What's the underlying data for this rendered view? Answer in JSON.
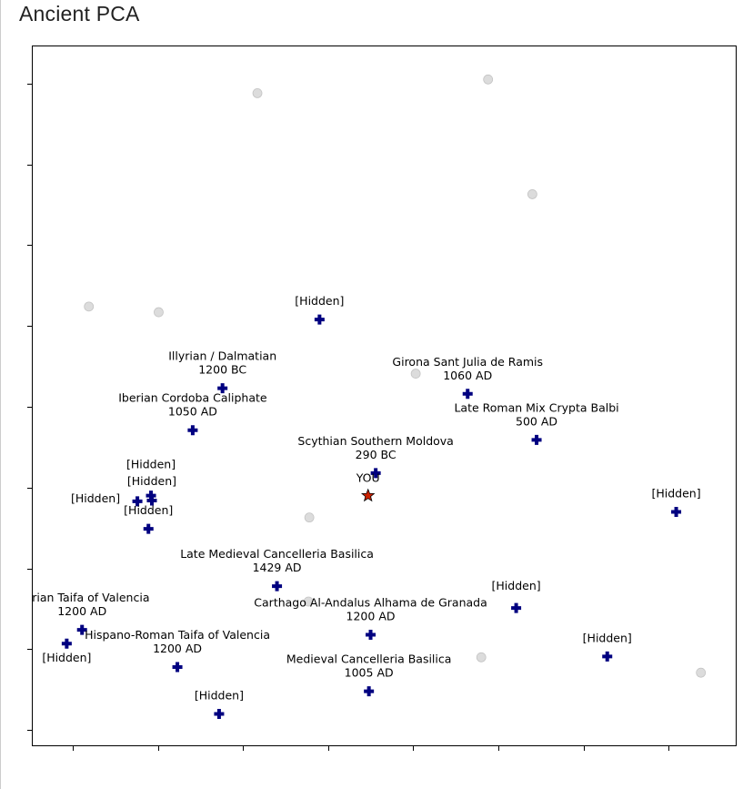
{
  "page": {
    "title": "Ancient PCA"
  },
  "chart_data": {
    "type": "scatter",
    "title": "Ancient PCA",
    "xlabel": "",
    "ylabel": "",
    "xlim": [
      -0.48,
      7.8
    ],
    "ylim": [
      -0.2,
      8.47
    ],
    "x_ticks": [
      0,
      1,
      2,
      3,
      4,
      5,
      6,
      7
    ],
    "y_ticks": [
      0,
      1,
      2,
      3,
      4,
      5,
      6,
      7,
      8
    ],
    "tick_labels_shown": false,
    "grid": false,
    "colors": {
      "reference": "#000080",
      "background_points": "#d3d3d3",
      "you": "#cc2200"
    },
    "background_points": [
      {
        "x": 2.17,
        "y": 7.88
      },
      {
        "x": 4.88,
        "y": 8.05
      },
      {
        "x": 5.4,
        "y": 6.63
      },
      {
        "x": 0.19,
        "y": 5.24
      },
      {
        "x": 1.01,
        "y": 5.17
      },
      {
        "x": 4.03,
        "y": 4.41
      },
      {
        "x": 2.78,
        "y": 2.63
      },
      {
        "x": 2.77,
        "y": 1.59
      },
      {
        "x": 4.8,
        "y": 0.9
      },
      {
        "x": 7.38,
        "y": 0.71
      }
    ],
    "reference_points": [
      {
        "x": 2.9,
        "y": 5.08,
        "name": "[Hidden]",
        "date": ""
      },
      {
        "x": 1.76,
        "y": 4.23,
        "name": "Illyrian / Dalmatian",
        "date": "1200 BC"
      },
      {
        "x": 1.41,
        "y": 3.71,
        "name": "Iberian Cordoba Caliphate",
        "date": "1050 AD"
      },
      {
        "x": 4.64,
        "y": 4.16,
        "name": "Girona Sant Julia de Ramis",
        "date": "1060 AD"
      },
      {
        "x": 5.45,
        "y": 3.59,
        "name": "Late Roman Mix Crypta Balbi",
        "date": "500 AD"
      },
      {
        "x": 3.56,
        "y": 3.18,
        "name": "Scythian Southern Moldova",
        "date": "290 BC"
      },
      {
        "x": 0.76,
        "y": 2.83,
        "name": "[Hidden]",
        "date": ""
      },
      {
        "x": 0.92,
        "y": 2.9,
        "name": "[Hidden]",
        "date": ""
      },
      {
        "x": 0.93,
        "y": 2.84,
        "name": "[Hidden]",
        "date": ""
      },
      {
        "x": 0.89,
        "y": 2.49,
        "name": "[Hidden]",
        "date": ""
      },
      {
        "x": 7.09,
        "y": 2.7,
        "name": "[Hidden]",
        "date": ""
      },
      {
        "x": 2.4,
        "y": 1.78,
        "name": "Late Medieval Cancelleria Basilica",
        "date": "1429 AD"
      },
      {
        "x": 0.11,
        "y": 1.24,
        "name": "Iberian Taifa of Valencia",
        "date": "1200 AD"
      },
      {
        "x": -0.07,
        "y": 1.07,
        "name": "[Hidden]",
        "date": ""
      },
      {
        "x": 1.23,
        "y": 0.78,
        "name": "Hispano-Roman Taifa of Valencia",
        "date": "1200 AD"
      },
      {
        "x": 3.5,
        "y": 1.18,
        "name": "Carthago Al-Andalus Alhama de Granada",
        "date": "1200 AD"
      },
      {
        "x": 5.21,
        "y": 1.51,
        "name": "[Hidden]",
        "date": ""
      },
      {
        "x": 6.28,
        "y": 0.91,
        "name": "[Hidden]",
        "date": ""
      },
      {
        "x": 3.48,
        "y": 0.48,
        "name": "Medieval Cancelleria Basilica",
        "date": "1005 AD"
      },
      {
        "x": 1.72,
        "y": 0.2,
        "name": "[Hidden]",
        "date": ""
      }
    ],
    "you_point": {
      "x": 3.47,
      "y": 2.9,
      "label": "YOU"
    }
  }
}
